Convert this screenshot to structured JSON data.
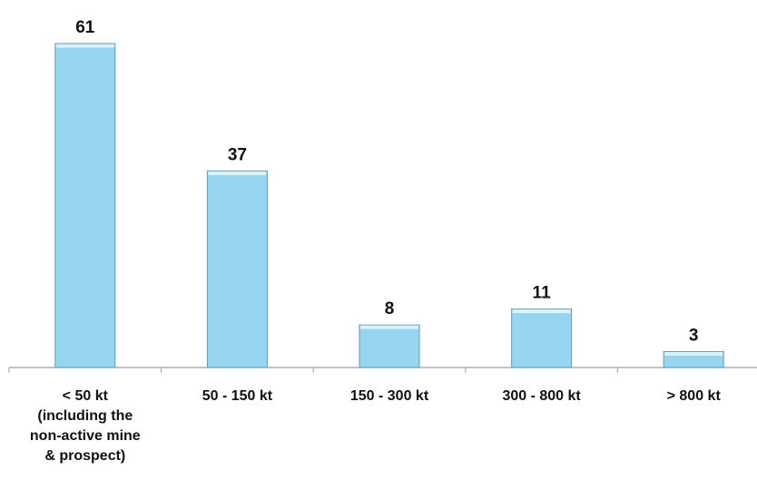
{
  "chart_data": {
    "type": "bar",
    "categories": [
      [
        "< 50 kt",
        "(including the",
        "non-active mine",
        "& prospect)"
      ],
      [
        "50 - 150 kt"
      ],
      [
        "150 - 300 kt"
      ],
      [
        "300 - 800 kt"
      ],
      [
        "> 800 kt"
      ]
    ],
    "values": [
      61,
      37,
      8,
      11,
      3
    ],
    "title": "",
    "xlabel": "",
    "ylabel": "",
    "ylim": [
      0,
      61
    ],
    "grid": false,
    "legend": "none",
    "bar_color": "#96d4f0",
    "bar_top_color": "#d8f3fb",
    "bar_edge_color": "#5a9fc1",
    "axis_color": "#b0b0b0"
  }
}
